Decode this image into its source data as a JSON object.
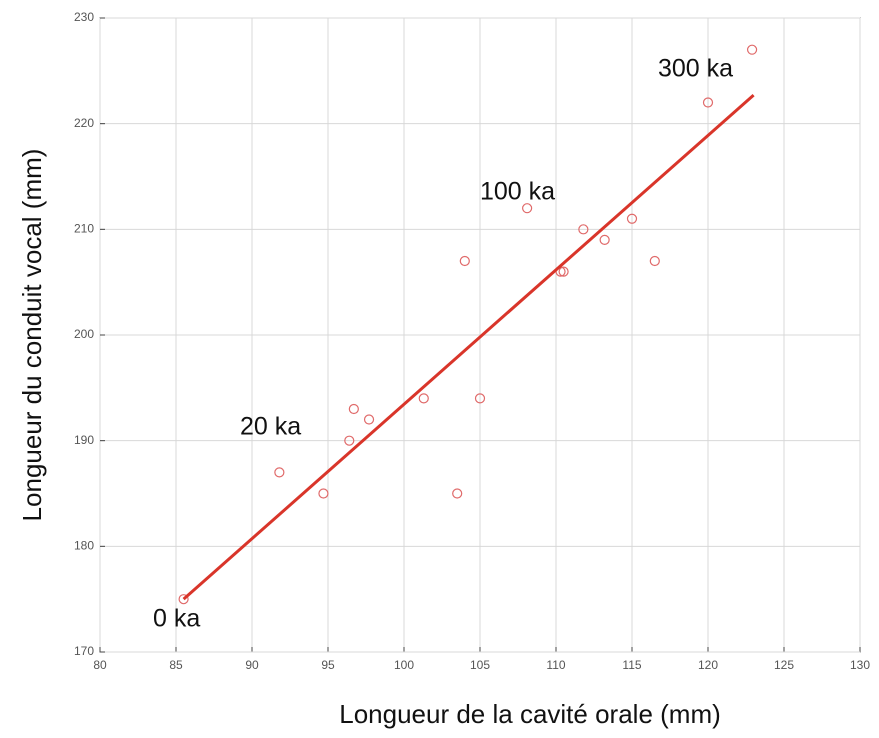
{
  "chart_data": {
    "type": "scatter",
    "xlabel": "Longueur de la cavité orale (mm)",
    "ylabel": "Longueur du conduit vocal (mm)",
    "xlim": [
      80,
      130
    ],
    "ylim": [
      170,
      230
    ],
    "xticks": [
      80,
      85,
      90,
      95,
      100,
      105,
      110,
      115,
      120,
      125,
      130
    ],
    "yticks": [
      170,
      180,
      190,
      200,
      210,
      220,
      230
    ],
    "grid": true,
    "series": [
      {
        "type": "scatter",
        "color": "#e06a6a",
        "x": [
          85.5,
          91.8,
          94.7,
          96.4,
          96.7,
          97.7,
          101.3,
          103.5,
          104,
          105,
          108.1,
          110.3,
          110.5,
          111.8,
          113.2,
          115,
          116.5,
          120,
          122.9
        ],
        "values": [
          175,
          187,
          185,
          190,
          193,
          192,
          194,
          185,
          207,
          194,
          212,
          206,
          206,
          210,
          209,
          211,
          207,
          222,
          227
        ]
      },
      {
        "type": "line",
        "color": "#d9352a",
        "x": [
          85.5,
          123
        ],
        "values": [
          175,
          222.7
        ]
      }
    ],
    "annotations": [
      "0 ka",
      "20 ka",
      "100 ka",
      "300 ka"
    ]
  }
}
